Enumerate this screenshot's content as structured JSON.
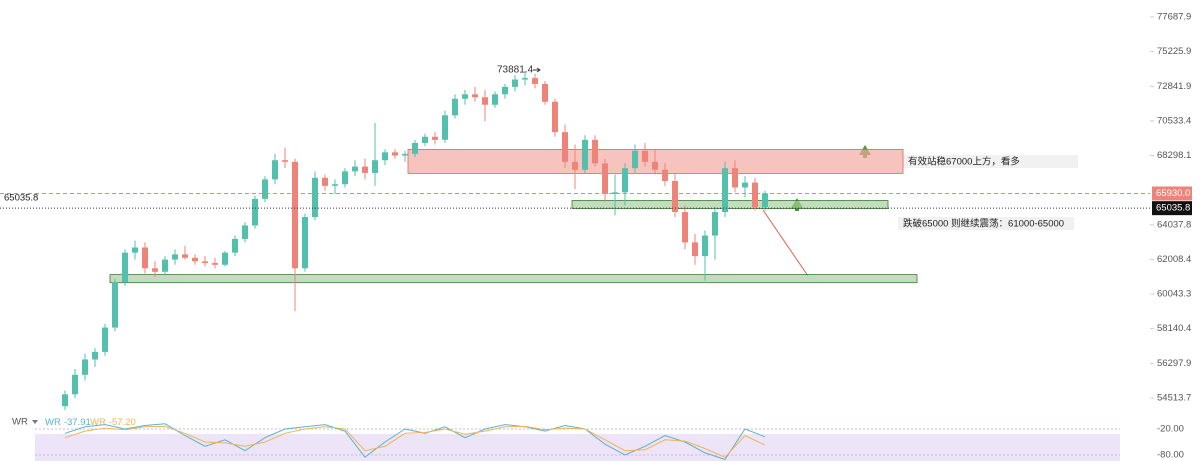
{
  "chart_data": {
    "type": "candlestick",
    "log_scale": true,
    "ylim": [
      53160,
      78925
    ],
    "yticks": [
      77687.9,
      75225.9,
      72841.9,
      70533.4,
      68298.1,
      64037.8,
      62008.4,
      60043.3,
      58140.4,
      56297.9,
      54513.7
    ],
    "up_color": "#55bfae",
    "down_color": "#ee8479",
    "candles": {
      "open": [
        54100,
        54700,
        55700,
        56500,
        56900,
        58200,
        60700,
        62400,
        62700,
        61500,
        61300,
        62000,
        62300,
        62100,
        61900,
        61800,
        61700,
        62400,
        63200,
        64000,
        65600,
        66800,
        68000,
        67900,
        61500,
        64500,
        66900,
        66400,
        66500,
        67300,
        67600,
        67200,
        68000,
        68500,
        68300,
        68400,
        69100,
        69500,
        69300,
        70900,
        72000,
        72300,
        72100,
        71600,
        72300,
        72800,
        73300,
        73400,
        73000,
        71800,
        69800,
        67900,
        67400,
        69300,
        67800,
        65900,
        66000,
        67500,
        68600,
        67900,
        67400,
        66700,
        64800,
        63000,
        62200,
        63400,
        64800,
        67500,
        66300,
        66600,
        65100
      ],
      "high": [
        54900,
        56000,
        56800,
        57100,
        58400,
        60900,
        62600,
        63100,
        63000,
        61900,
        62200,
        62600,
        62800,
        62300,
        62200,
        62100,
        62500,
        63400,
        64200,
        65800,
        67000,
        68400,
        68800,
        68100,
        64700,
        67300,
        67100,
        66800,
        67500,
        68000,
        68100,
        70400,
        68700,
        68700,
        68600,
        69300,
        69700,
        69800,
        71200,
        72300,
        72600,
        72800,
        72600,
        72500,
        73000,
        73600,
        73881.4,
        73700,
        73200,
        72000,
        70300,
        69000,
        69600,
        69600,
        68100,
        67100,
        67800,
        69000,
        69100,
        68700,
        67800,
        67200,
        65200,
        63500,
        63700,
        65100,
        67900,
        68000,
        67000,
        66900,
        66100
      ],
      "low": [
        53900,
        54500,
        55400,
        56100,
        56700,
        58000,
        60500,
        62000,
        61200,
        61000,
        61100,
        61700,
        62000,
        61700,
        61600,
        61500,
        61600,
        62200,
        63000,
        63800,
        65400,
        66500,
        67500,
        59100,
        61300,
        64300,
        66100,
        65900,
        66300,
        67000,
        66800,
        66400,
        67700,
        68100,
        67900,
        68200,
        68900,
        69000,
        69100,
        70700,
        71600,
        71800,
        70500,
        71400,
        72000,
        72500,
        72900,
        72700,
        71600,
        69500,
        67500,
        66200,
        67200,
        67600,
        65400,
        64600,
        65200,
        67200,
        67600,
        67100,
        66400,
        64500,
        62600,
        61700,
        60800,
        62000,
        64500,
        66000,
        65700,
        64900,
        64900
      ],
      "close": [
        54700,
        55700,
        56500,
        56900,
        58200,
        60700,
        62400,
        62700,
        61500,
        61300,
        62000,
        62300,
        62100,
        61900,
        61800,
        61700,
        62400,
        63200,
        64000,
        65600,
        66800,
        68000,
        67900,
        61500,
        64500,
        66900,
        66400,
        66500,
        67300,
        67600,
        67200,
        68000,
        68500,
        68300,
        68400,
        69100,
        69500,
        69300,
        70900,
        72000,
        72300,
        72100,
        71600,
        72300,
        72800,
        73300,
        73400,
        73000,
        71800,
        69800,
        67900,
        67400,
        69300,
        67800,
        65900,
        66000,
        67500,
        68600,
        67900,
        67400,
        66700,
        64800,
        63000,
        62200,
        63400,
        64800,
        67500,
        66300,
        66600,
        65100,
        65930
      ]
    },
    "current_price": {
      "value": 65930,
      "label": "65930.0",
      "color": "#ee8479"
    },
    "crosshair_price": 65035.8,
    "zones": [
      {
        "low": 67170,
        "high": 68685,
        "color": "#f4a9a4"
      },
      {
        "low": 65012,
        "high": 65500,
        "color": "#a7cf9f"
      },
      {
        "low": 60680,
        "high": 61140,
        "color": "#a7cf9f"
      }
    ],
    "annotations": [
      "有效站稳67000上方，看多",
      "跌破65000 则继续震荡：61000-65000"
    ],
    "indicator": {
      "name": "WR",
      "ylim": [
        -100,
        0
      ],
      "yticks": [
        {
          "value": -20,
          "label": "-20.00"
        },
        {
          "value": -80,
          "label": "-80.00"
        }
      ],
      "series": [
        {
          "name": "WR",
          "color": "#5ab3c9",
          "legend_value": -37.91,
          "values": [
            -30,
            -15,
            -10,
            -20,
            -12,
            -8,
            -35,
            -60,
            -45,
            -70,
            -40,
            -20,
            -15,
            -10,
            -25,
            -85,
            -50,
            -20,
            -30,
            -15,
            -40,
            -20,
            -10,
            -15,
            -25,
            -12,
            -20,
            -55,
            -80,
            -60,
            -35,
            -50,
            -75,
            -90,
            -20,
            -37.91
          ]
        },
        {
          "name": "WR",
          "color": "#f0b45a",
          "legend_value": {
            "value": -57.2,
            "label": "-57.20"
          },
          "values": [
            -40,
            -25,
            -18,
            -22,
            -15,
            -14,
            -30,
            -50,
            -52,
            -60,
            -50,
            -30,
            -20,
            -15,
            -20,
            -70,
            -60,
            -30,
            -28,
            -20,
            -32,
            -25,
            -15,
            -14,
            -22,
            -18,
            -20,
            -45,
            -70,
            -68,
            -45,
            -48,
            -65,
            -85,
            -35,
            -57.2
          ]
        }
      ]
    }
  }
}
